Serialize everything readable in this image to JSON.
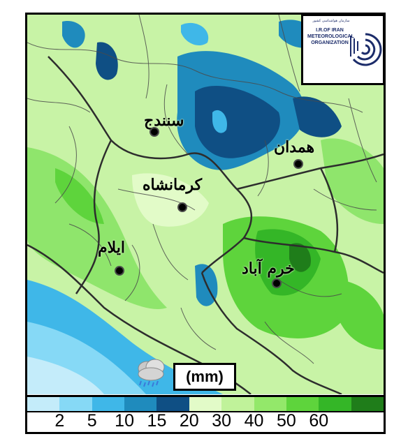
{
  "logo": {
    "org_name_fa": "سازمان هواشناسی کشور",
    "org_name_en": [
      "I.R.OF IRAN",
      "METEOROLOGICAL",
      "ORGANIZATION"
    ],
    "icon": "meteorological-organization-logo"
  },
  "cities": [
    {
      "name": "سنندج"
    },
    {
      "name": "همدان"
    },
    {
      "name": "کرمانشاه"
    },
    {
      "name": "ایلام"
    },
    {
      "name": "خرم آباد"
    }
  ],
  "unit_label": "(mm)",
  "weather_icon": "rain-cloud-icon",
  "legend": {
    "colors": [
      "#c4ecfa",
      "#86d9f6",
      "#3fb7e8",
      "#1f8bbd",
      "#0f4f84",
      "#e2fbc8",
      "#c0f29a",
      "#93e86a",
      "#5ed43c",
      "#34b627",
      "#1f7d1a"
    ],
    "ticks": [
      "2",
      "5",
      "10",
      "15",
      "20",
      "30",
      "40",
      "50",
      "60"
    ]
  },
  "colors": {
    "light_green": "#c8f3a6",
    "mid_green": "#8fe56c",
    "dark_green": "#4cc43a",
    "light_blue": "#86d9f6",
    "dark_blue": "#0f4f84",
    "border": "#333333"
  }
}
